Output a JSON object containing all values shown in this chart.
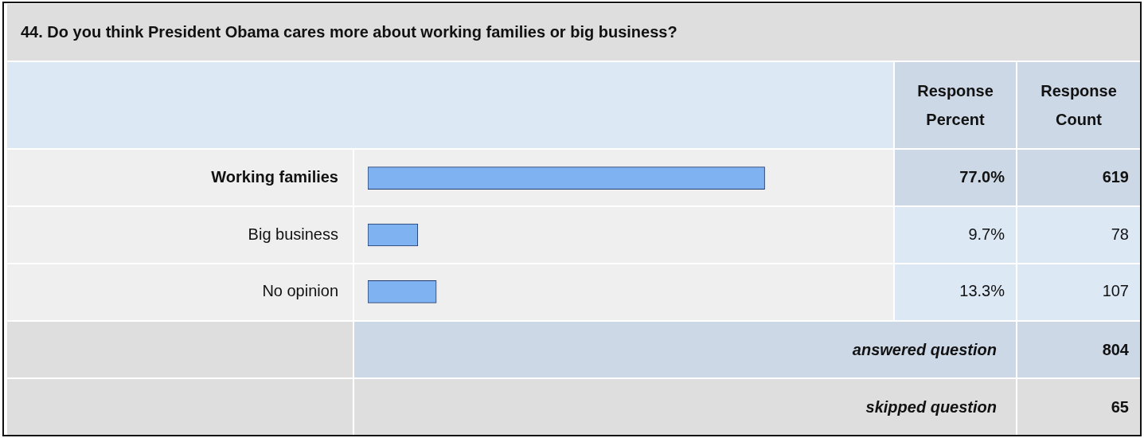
{
  "chart_data": {
    "type": "bar",
    "orientation": "horizontal",
    "title": "44. Do you think President Obama cares more about working families or big business?",
    "categories": [
      "Working families",
      "Big business",
      "No opinion"
    ],
    "values": [
      77.0,
      9.7,
      13.3
    ],
    "value_labels": [
      "77.0%",
      "9.7%",
      "13.3%"
    ],
    "color": "#7fb2f0",
    "tick_labels": "y",
    "legend": false,
    "data_labels": true,
    "annotations": [
      "Response Percent",
      "Response Count",
      "619",
      "78",
      "107",
      "answered question",
      "804",
      "skipped question",
      "65"
    ]
  }
}
